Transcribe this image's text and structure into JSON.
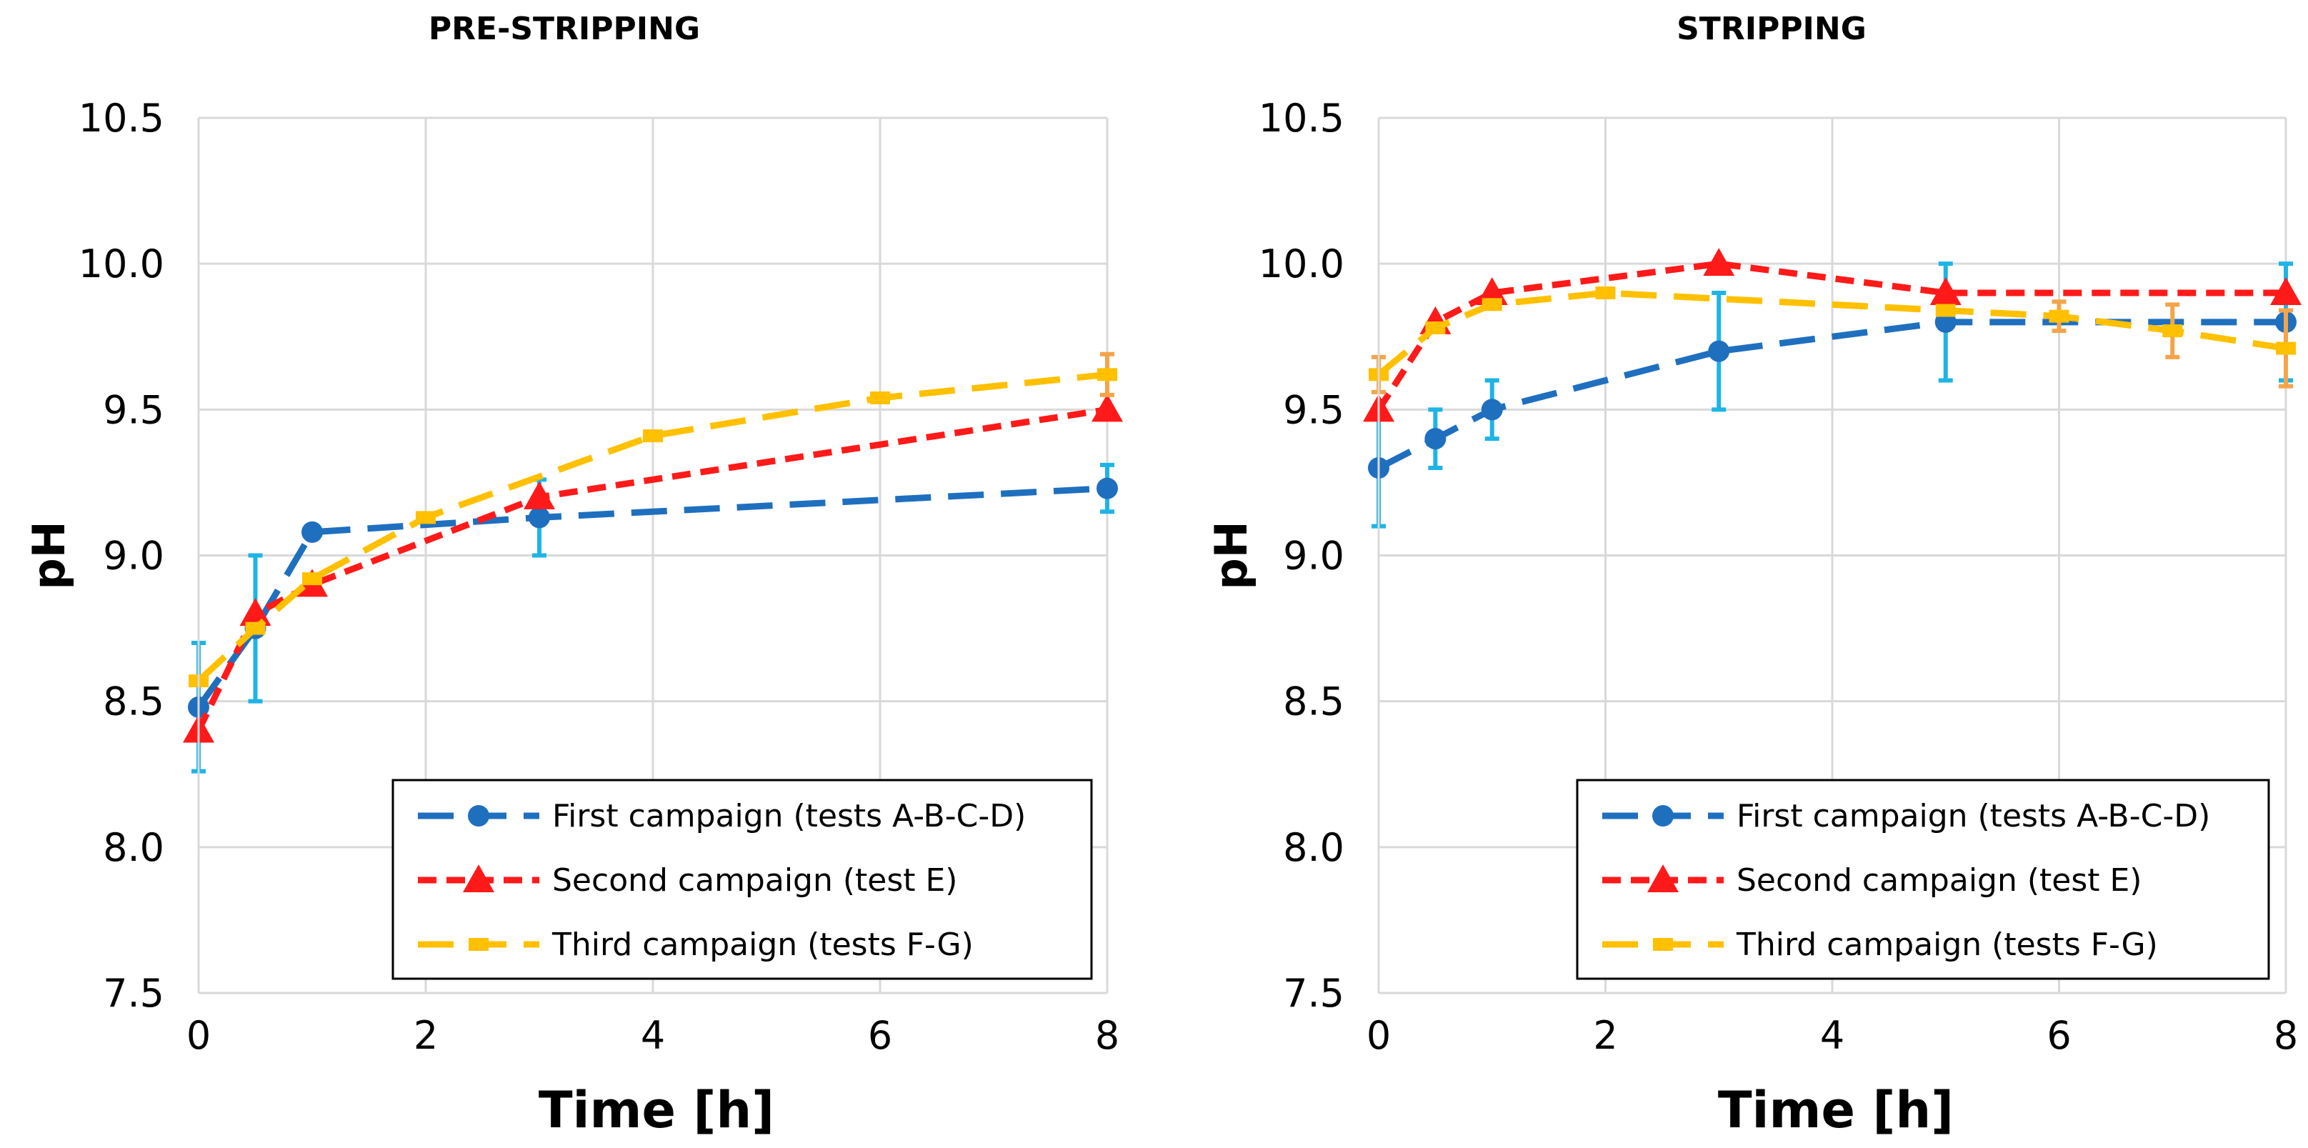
{
  "chart_data": [
    {
      "type": "line",
      "title": "PRE-STRIPPING",
      "xlabel": "Time [h]",
      "ylabel": "pH",
      "xlim": [
        0,
        8
      ],
      "ylim": [
        7.5,
        10.5
      ],
      "xticks": [
        "0",
        "2",
        "4",
        "6",
        "8"
      ],
      "yticks": [
        "7.5",
        "8.0",
        "8.5",
        "9.0",
        "9.5",
        "10.0",
        "10.5"
      ],
      "grid": true,
      "legend_position": "bottom-right",
      "series": [
        {
          "name": "First campaign (tests A-B-C-D)",
          "color": "#1f6fbf",
          "marker": "circle",
          "dash": "long",
          "x": [
            0,
            0.5,
            1,
            3,
            8
          ],
          "y": [
            8.48,
            8.75,
            9.08,
            9.13,
            9.23
          ],
          "err": [
            0.22,
            0.25,
            0.0,
            0.13,
            0.08
          ]
        },
        {
          "name": "Second campaign (test E)",
          "color": "#ff1a1a",
          "marker": "triangle",
          "dash": "short",
          "x": [
            0,
            0.5,
            1,
            3,
            8
          ],
          "y": [
            8.4,
            8.8,
            8.9,
            9.2,
            9.5
          ],
          "err": []
        },
        {
          "name": "Third campaign (tests F-G)",
          "color": "#ffc000",
          "marker": "dash",
          "dash": "long",
          "x": [
            0,
            0.5,
            1,
            2,
            4,
            6,
            8
          ],
          "y": [
            8.57,
            8.75,
            8.92,
            9.13,
            9.41,
            9.54,
            9.62
          ],
          "err": [
            0,
            0,
            0,
            0,
            0,
            0,
            0.07
          ]
        }
      ]
    },
    {
      "type": "line",
      "title": "STRIPPING",
      "xlabel": "Time [h]",
      "ylabel": "pH",
      "xlim": [
        0,
        8
      ],
      "ylim": [
        7.5,
        10.5
      ],
      "xticks": [
        "0",
        "2",
        "4",
        "6",
        "8"
      ],
      "yticks": [
        "7.5",
        "8.0",
        "8.5",
        "9.0",
        "9.5",
        "10.0",
        "10.5"
      ],
      "grid": true,
      "legend_position": "bottom-right",
      "series": [
        {
          "name": "First campaign (tests A-B-C-D)",
          "color": "#1f6fbf",
          "marker": "circle",
          "dash": "long",
          "x": [
            0,
            0.5,
            1,
            3,
            5,
            8
          ],
          "y": [
            9.3,
            9.4,
            9.5,
            9.7,
            9.8,
            9.8
          ],
          "err": [
            0.2,
            0.1,
            0.1,
            0.2,
            0.2,
            0.2
          ]
        },
        {
          "name": "Second campaign (test E)",
          "color": "#ff1a1a",
          "marker": "triangle",
          "dash": "short",
          "x": [
            0,
            0.5,
            1,
            3,
            5,
            8
          ],
          "y": [
            9.5,
            9.8,
            9.9,
            10.0,
            9.9,
            9.9
          ],
          "err": []
        },
        {
          "name": "Third campaign (tests F-G)",
          "color": "#ffc000",
          "marker": "dash",
          "dash": "long",
          "x": [
            0,
            0.5,
            1,
            2,
            5,
            6,
            7,
            8
          ],
          "y": [
            9.62,
            9.78,
            9.86,
            9.9,
            9.84,
            9.82,
            9.77,
            9.71
          ],
          "err": [
            0.06,
            0,
            0,
            0,
            0,
            0.05,
            0.09,
            0.13
          ]
        }
      ]
    }
  ]
}
